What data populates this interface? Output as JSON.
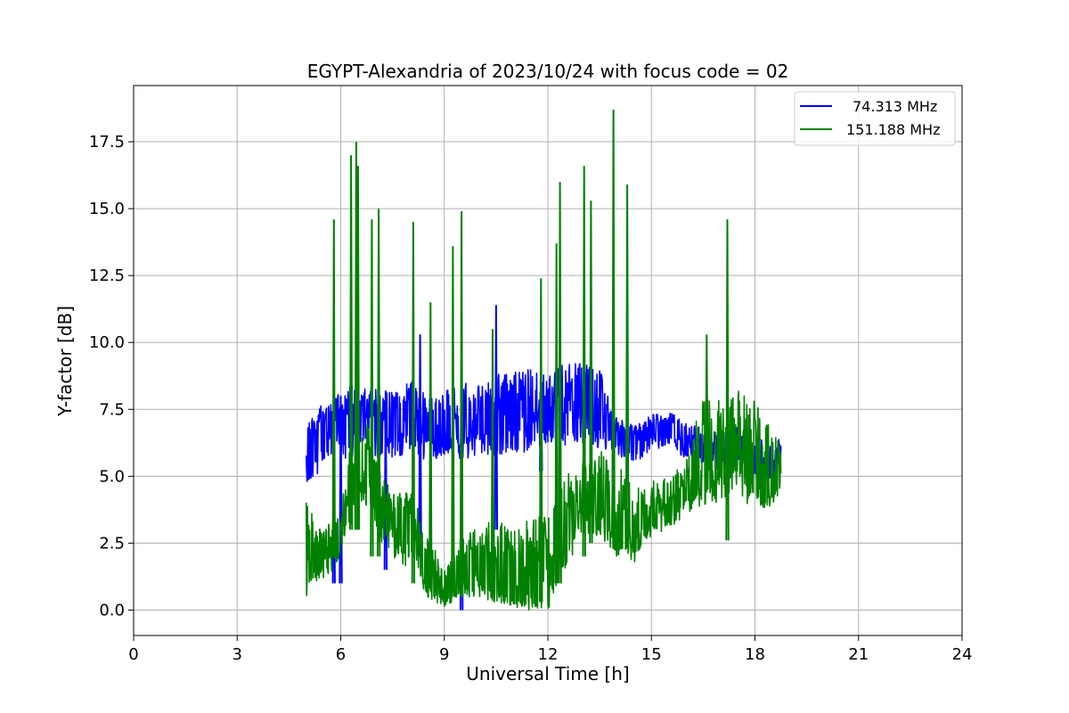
{
  "chart_data": {
    "type": "line",
    "title": "EGYPT-Alexandria of 2023/10/24 with focus code = 02",
    "xlabel": "Universal Time [h]",
    "ylabel": "Y-factor [dB]",
    "xlim": [
      0,
      24
    ],
    "ylim": [
      -0.95,
      19.6
    ],
    "xticks": [
      0,
      3,
      6,
      9,
      12,
      15,
      18,
      21,
      24
    ],
    "xtick_labels": [
      "0",
      "3",
      "6",
      "9",
      "12",
      "15",
      "18",
      "21",
      "24"
    ],
    "yticks": [
      0.0,
      2.5,
      5.0,
      7.5,
      10.0,
      12.5,
      15.0,
      17.5
    ],
    "ytick_labels": [
      "0.0",
      "2.5",
      "5.0",
      "7.5",
      "10.0",
      "12.5",
      "15.0",
      "17.5"
    ],
    "grid": true,
    "legend_position": "top-right",
    "series": [
      {
        "name": "74.313 MHz",
        "color": "#0000ff",
        "x": [
          5.0,
          5.2,
          5.5,
          5.8,
          6.0,
          6.2,
          6.5,
          6.8,
          7.0,
          7.5,
          8.0,
          8.5,
          9.0,
          9.5,
          10.0,
          10.5,
          11.0,
          11.5,
          12.0,
          12.5,
          13.0,
          13.5,
          14.0,
          14.5,
          15.0,
          15.5,
          16.0,
          16.5,
          17.0,
          17.5,
          18.0,
          18.5,
          18.75
        ],
        "y": [
          6.0,
          6.5,
          6.8,
          7.0,
          6.8,
          7.0,
          7.2,
          7.0,
          7.1,
          7.0,
          7.2,
          7.0,
          6.9,
          7.0,
          7.2,
          7.1,
          7.3,
          7.2,
          7.5,
          7.6,
          7.5,
          7.4,
          6.5,
          6.2,
          6.6,
          6.9,
          6.3,
          6.0,
          5.8,
          6.2,
          5.6,
          5.5,
          6.0
        ],
        "min": [
          4.7,
          4.8,
          5.5,
          5.6,
          5.7,
          5.6,
          5.7,
          5.8,
          5.6,
          5.7,
          5.8,
          5.6,
          5.7,
          5.6,
          5.8,
          5.7,
          5.9,
          5.9,
          6.0,
          6.1,
          6.2,
          6.0,
          5.8,
          5.5,
          5.9,
          6.2,
          5.6,
          5.4,
          5.2,
          5.5,
          5.0,
          4.9,
          5.3
        ],
        "max": [
          7.0,
          7.2,
          7.8,
          8.2,
          8.0,
          8.3,
          8.6,
          8.3,
          8.4,
          8.3,
          8.6,
          8.3,
          8.2,
          8.5,
          8.6,
          8.8,
          8.9,
          9.0,
          9.1,
          9.2,
          9.3,
          9.0,
          7.2,
          6.9,
          7.3,
          7.5,
          7.0,
          6.8,
          6.6,
          7.0,
          6.4,
          6.3,
          6.5
        ],
        "spikes": [
          [
            5.8,
            1.0,
            8.2
          ],
          [
            6.0,
            1.0,
            8.0
          ],
          [
            7.3,
            1.5,
            8.2
          ],
          [
            8.3,
            2.0,
            10.3
          ],
          [
            9.5,
            0.0,
            8.0
          ],
          [
            10.5,
            3.0,
            11.4
          ],
          [
            11.8,
            5.2,
            9.0
          ]
        ]
      },
      {
        "name": "151.188 MHz",
        "color": "#008000",
        "x": [
          5.0,
          5.2,
          5.5,
          5.8,
          6.0,
          6.2,
          6.5,
          6.8,
          7.0,
          7.5,
          8.0,
          8.5,
          9.0,
          9.5,
          10.0,
          10.5,
          11.0,
          11.5,
          12.0,
          12.5,
          13.0,
          13.5,
          14.0,
          14.5,
          15.0,
          15.5,
          16.0,
          16.5,
          17.0,
          17.5,
          18.0,
          18.5,
          18.75
        ],
        "y": [
          1.5,
          2.0,
          2.0,
          2.4,
          2.6,
          4.5,
          5.0,
          5.5,
          4.3,
          3.0,
          3.2,
          1.5,
          0.5,
          1.5,
          1.5,
          1.2,
          0.5,
          1.0,
          2.0,
          3.0,
          4.0,
          4.5,
          3.0,
          2.5,
          3.5,
          3.8,
          4.5,
          5.5,
          5.5,
          6.0,
          5.5,
          4.5,
          5.0
        ],
        "min": [
          0.2,
          1.0,
          1.2,
          1.5,
          2.0,
          3.0,
          3.5,
          4.0,
          2.5,
          2.0,
          1.5,
          0.5,
          0.1,
          0.5,
          0.2,
          0.3,
          0.1,
          0.1,
          0.0,
          1.5,
          2.5,
          2.8,
          2.0,
          2.0,
          2.8,
          3.0,
          3.5,
          3.9,
          4.0,
          4.5,
          3.5,
          4.0,
          4.2
        ],
        "max": [
          4.2,
          3.5,
          3.0,
          3.5,
          3.5,
          6.0,
          6.5,
          7.0,
          6.0,
          4.5,
          4.5,
          3.0,
          1.5,
          3.0,
          3.0,
          3.5,
          3.0,
          3.5,
          3.5,
          5.0,
          5.5,
          6.0,
          5.5,
          4.5,
          4.8,
          5.0,
          5.5,
          8.3,
          8.0,
          8.2,
          7.8,
          6.8,
          6.2
        ],
        "spikes": [
          [
            5.8,
            2.0,
            14.6
          ],
          [
            6.3,
            3.0,
            17.0
          ],
          [
            6.45,
            3.0,
            17.5
          ],
          [
            6.5,
            3.0,
            16.6
          ],
          [
            6.9,
            2.0,
            14.6
          ],
          [
            7.1,
            2.0,
            15.0
          ],
          [
            8.1,
            1.0,
            14.5
          ],
          [
            8.6,
            0.8,
            11.5
          ],
          [
            9.25,
            0.5,
            13.6
          ],
          [
            9.5,
            0.5,
            14.9
          ],
          [
            10.4,
            0.5,
            10.5
          ],
          [
            11.8,
            0.3,
            12.4
          ],
          [
            12.25,
            1.0,
            13.7
          ],
          [
            12.35,
            1.0,
            16.0
          ],
          [
            13.05,
            2.0,
            16.6
          ],
          [
            13.25,
            2.5,
            15.3
          ],
          [
            13.9,
            3.0,
            18.7
          ],
          [
            14.3,
            3.0,
            15.9
          ],
          [
            16.6,
            4.5,
            10.3
          ],
          [
            17.2,
            2.6,
            14.6
          ]
        ]
      }
    ]
  }
}
